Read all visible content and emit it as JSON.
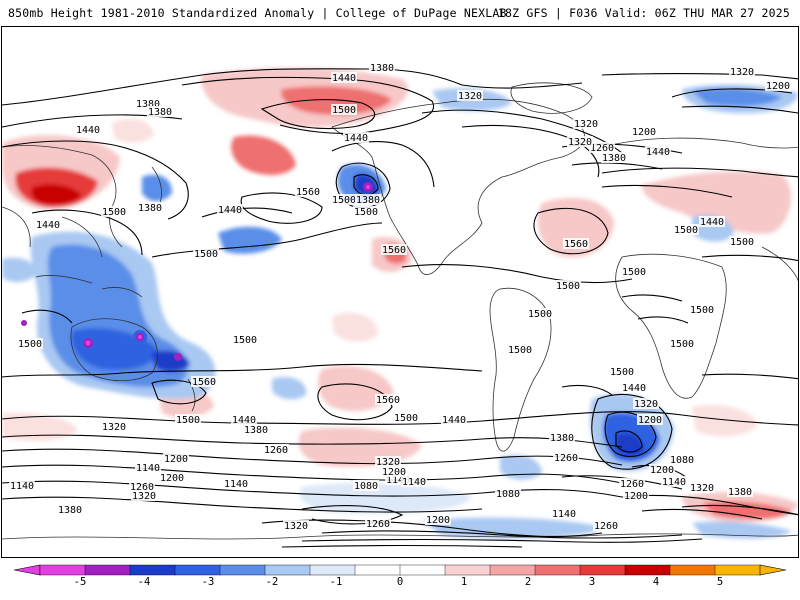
{
  "header": {
    "title_left": "850mb Height 1981-2010 Standardized Anomaly | College of DuPage NEXLAB",
    "title_right": "18Z GFS | F036 Valid: 06Z THU MAR 27 2025"
  },
  "colorbar": {
    "ticks": [
      "-5",
      "-4",
      "-3",
      "-2",
      "-1",
      "0",
      "1",
      "2",
      "3",
      "4",
      "5"
    ],
    "colors": [
      "#e040e0",
      "#a020c0",
      "#1a3cc8",
      "#2e62e0",
      "#5a8ee8",
      "#a9c8f2",
      "#dde8f8",
      "#ffffff",
      "#ffffff",
      "#f8d2d2",
      "#f4a6a6",
      "#ee7070",
      "#e63a3a",
      "#c80000",
      "#f07800",
      "#f8b400"
    ]
  },
  "map": {
    "contour_labels": [
      {
        "id": "c1380-n",
        "text": "1380"
      },
      {
        "id": "c1440-n",
        "text": "1440"
      },
      {
        "id": "c1500-n",
        "text": "1500"
      },
      {
        "id": "c1320-ne",
        "text": "1320"
      },
      {
        "id": "c1200-ne",
        "text": "1200"
      },
      {
        "id": "c1380-w",
        "text": "1380"
      },
      {
        "id": "c1380-w2",
        "text": "1380"
      },
      {
        "id": "c1440-w",
        "text": "1440"
      },
      {
        "id": "c1320-na",
        "text": "1320"
      },
      {
        "id": "c1440-pac",
        "text": "1440"
      },
      {
        "id": "c1500-pac",
        "text": "1500"
      },
      {
        "id": "c1560-pac",
        "text": "1560"
      },
      {
        "id": "c1380-low",
        "text": "1380"
      },
      {
        "id": "c1500-low",
        "text": "1500"
      },
      {
        "id": "c1440-ca",
        "text": "1440"
      },
      {
        "id": "c1500-wa",
        "text": "1500"
      },
      {
        "id": "c1380-wa",
        "text": "1380"
      },
      {
        "id": "c1440-aus",
        "text": "1440"
      },
      {
        "id": "c1500-ind",
        "text": "1500"
      },
      {
        "id": "c1500-io",
        "text": "1500"
      },
      {
        "id": "c1560-mx",
        "text": "1560"
      },
      {
        "id": "c1560-atl",
        "text": "1560"
      },
      {
        "id": "c1320-eu",
        "text": "1320"
      },
      {
        "id": "c1380-eu",
        "text": "1380"
      },
      {
        "id": "c1260-eu",
        "text": "1260"
      },
      {
        "id": "c1440-eu",
        "text": "1440"
      },
      {
        "id": "c1200-eu",
        "text": "1200"
      },
      {
        "id": "c1320-eu2",
        "text": "1320"
      },
      {
        "id": "c1500-af1",
        "text": "1500"
      },
      {
        "id": "c1500-af2",
        "text": "1500"
      },
      {
        "id": "c1440-af",
        "text": "1440"
      },
      {
        "id": "c1500-af3",
        "text": "1500"
      },
      {
        "id": "c1500-sa",
        "text": "1500"
      },
      {
        "id": "c1500-sa2",
        "text": "1500"
      },
      {
        "id": "c1500-sa3",
        "text": "1500"
      },
      {
        "id": "c1500-af4",
        "text": "1500"
      },
      {
        "id": "c1500-af5",
        "text": "1500"
      },
      {
        "id": "c1500-sp",
        "text": "1500"
      },
      {
        "id": "c1560-aus",
        "text": "1560"
      },
      {
        "id": "c1500-sp2",
        "text": "1500"
      },
      {
        "id": "c1440-sp",
        "text": "1440"
      },
      {
        "id": "c1380-sp",
        "text": "1380"
      },
      {
        "id": "c1560-sp",
        "text": "1560"
      },
      {
        "id": "c1500-sp3",
        "text": "1500"
      },
      {
        "id": "c1440-sp2",
        "text": "1440"
      },
      {
        "id": "c1500-sa4",
        "text": "1500"
      },
      {
        "id": "c1440-sa",
        "text": "1440"
      },
      {
        "id": "c1320-sa",
        "text": "1320"
      },
      {
        "id": "c1200-sa",
        "text": "1200"
      },
      {
        "id": "c1380-sa",
        "text": "1380"
      },
      {
        "id": "c1260-sa",
        "text": "1260"
      },
      {
        "id": "c1080-sa",
        "text": "1080"
      },
      {
        "id": "c1320-s",
        "text": "1320"
      },
      {
        "id": "c1200-s",
        "text": "1200"
      },
      {
        "id": "c1260-s",
        "text": "1260"
      },
      {
        "id": "c1140-s",
        "text": "1140"
      },
      {
        "id": "c1260-s2",
        "text": "1260"
      },
      {
        "id": "c1200-s2",
        "text": "1200"
      },
      {
        "id": "c1140-s2",
        "text": "1140"
      },
      {
        "id": "c1260-s3",
        "text": "1260"
      },
      {
        "id": "c1320-s3",
        "text": "1320"
      },
      {
        "id": "c1140-s3",
        "text": "1140"
      },
      {
        "id": "c1380-s",
        "text": "1380"
      },
      {
        "id": "c1320-s4",
        "text": "1320"
      },
      {
        "id": "c1140-s4",
        "text": "1140"
      },
      {
        "id": "c1320-s5",
        "text": "1320"
      },
      {
        "id": "c1260-s5",
        "text": "1260"
      },
      {
        "id": "c1200-s5",
        "text": "1200"
      },
      {
        "id": "c1080-s",
        "text": "1080"
      },
      {
        "id": "c1140-s5",
        "text": "1140"
      },
      {
        "id": "c1200-s6",
        "text": "1200"
      },
      {
        "id": "c1080-s2",
        "text": "1080"
      },
      {
        "id": "c1140-s6",
        "text": "1140"
      },
      {
        "id": "c1260-s6",
        "text": "1260"
      },
      {
        "id": "c1200-s7",
        "text": "1200"
      },
      {
        "id": "c1140-s7",
        "text": "1140"
      },
      {
        "id": "c1320-s7",
        "text": "1320"
      },
      {
        "id": "c1380-s7",
        "text": "1380"
      },
      {
        "id": "c1260-se",
        "text": "1260"
      },
      {
        "id": "c1200-se",
        "text": "1200"
      }
    ]
  }
}
